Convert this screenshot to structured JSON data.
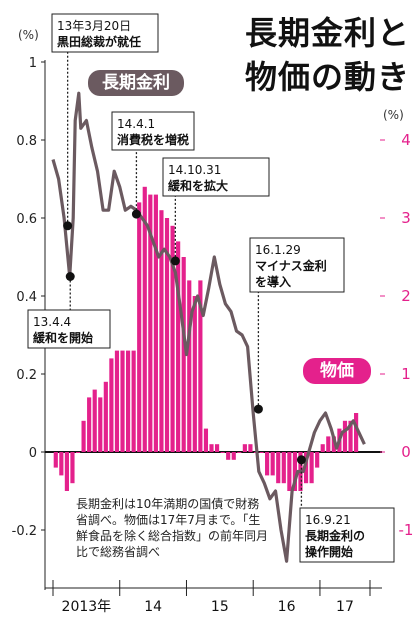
{
  "chart_data": {
    "type": "bar+line",
    "title": [
      "長期金利と",
      "物価の動き"
    ],
    "left_axis": {
      "unit": "(%)",
      "ticks": [
        1.0,
        0.8,
        0.6,
        0.4,
        0.2,
        0,
        -0.2
      ],
      "range": [
        -0.3,
        1.0
      ]
    },
    "right_axis": {
      "unit": "(%)",
      "ticks": [
        4,
        3,
        2,
        1,
        0,
        -1
      ],
      "range": [
        -1.5,
        5.0
      ],
      "color": "#e4218c"
    },
    "x_axis": {
      "labels": [
        "2013年",
        "14",
        "15",
        "16",
        "17"
      ],
      "start": "2013-01",
      "end": "2017-09"
    },
    "series": [
      {
        "name": "長期金利",
        "type": "line",
        "axis": "left",
        "color": "#6b5a60",
        "points": [
          [
            "2013-01",
            0.75
          ],
          [
            "2013-02",
            0.7
          ],
          [
            "2013-03",
            0.6
          ],
          [
            "2013-04",
            0.45
          ],
          [
            "2013-04-20",
            0.6
          ],
          [
            "2013-05",
            0.85
          ],
          [
            "2013-05-20",
            0.92
          ],
          [
            "2013-06",
            0.83
          ],
          [
            "2013-07",
            0.85
          ],
          [
            "2013-08",
            0.78
          ],
          [
            "2013-09",
            0.72
          ],
          [
            "2013-10",
            0.62
          ],
          [
            "2013-11",
            0.62
          ],
          [
            "2013-12",
            0.72
          ],
          [
            "2014-01",
            0.68
          ],
          [
            "2014-02",
            0.62
          ],
          [
            "2014-03",
            0.63
          ],
          [
            "2014-04",
            0.62
          ],
          [
            "2014-05",
            0.6
          ],
          [
            "2014-06",
            0.58
          ],
          [
            "2014-07",
            0.54
          ],
          [
            "2014-08",
            0.5
          ],
          [
            "2014-09",
            0.52
          ],
          [
            "2014-10",
            0.5
          ],
          [
            "2014-11",
            0.46
          ],
          [
            "2014-12",
            0.36
          ],
          [
            "2015-01",
            0.25
          ],
          [
            "2015-02",
            0.36
          ],
          [
            "2015-03",
            0.4
          ],
          [
            "2015-04",
            0.35
          ],
          [
            "2015-05",
            0.42
          ],
          [
            "2015-06",
            0.5
          ],
          [
            "2015-07",
            0.43
          ],
          [
            "2015-08",
            0.38
          ],
          [
            "2015-09",
            0.36
          ],
          [
            "2015-10",
            0.31
          ],
          [
            "2015-11",
            0.3
          ],
          [
            "2015-12",
            0.27
          ],
          [
            "2016-01",
            0.1
          ],
          [
            "2016-02",
            -0.05
          ],
          [
            "2016-03",
            -0.08
          ],
          [
            "2016-04",
            -0.12
          ],
          [
            "2016-05",
            -0.1
          ],
          [
            "2016-06",
            -0.2
          ],
          [
            "2016-07",
            -0.28
          ],
          [
            "2016-08",
            -0.1
          ],
          [
            "2016-09",
            -0.05
          ],
          [
            "2016-10",
            -0.05
          ],
          [
            "2016-11",
            0.0
          ],
          [
            "2016-12",
            0.05
          ],
          [
            "2017-01",
            0.08
          ],
          [
            "2017-02",
            0.1
          ],
          [
            "2017-03",
            0.06
          ],
          [
            "2017-04",
            0.01
          ],
          [
            "2017-05",
            0.05
          ],
          [
            "2017-06",
            0.06
          ],
          [
            "2017-07",
            0.08
          ],
          [
            "2017-08",
            0.05
          ],
          [
            "2017-09",
            0.02
          ]
        ]
      },
      {
        "name": "物価",
        "type": "bar",
        "axis": "right",
        "color": "#e4218c",
        "months": [
          "2013-01",
          "2013-02",
          "2013-03",
          "2013-04",
          "2013-05",
          "2013-06",
          "2013-07",
          "2013-08",
          "2013-09",
          "2013-10",
          "2013-11",
          "2013-12",
          "2014-01",
          "2014-02",
          "2014-03",
          "2014-04",
          "2014-05",
          "2014-06",
          "2014-07",
          "2014-08",
          "2014-09",
          "2014-10",
          "2014-11",
          "2014-12",
          "2015-01",
          "2015-02",
          "2015-03",
          "2015-04",
          "2015-05",
          "2015-06",
          "2015-07",
          "2015-08",
          "2015-09",
          "2015-10",
          "2015-11",
          "2015-12",
          "2016-01",
          "2016-02",
          "2016-03",
          "2016-04",
          "2016-05",
          "2016-06",
          "2016-07",
          "2016-08",
          "2016-09",
          "2016-10",
          "2016-11",
          "2016-12",
          "2017-01",
          "2017-02",
          "2017-03",
          "2017-04",
          "2017-05",
          "2017-06",
          "2017-07"
        ],
        "values": [
          -0.2,
          -0.3,
          -0.5,
          -0.4,
          0.0,
          0.4,
          0.7,
          0.8,
          0.7,
          0.9,
          1.2,
          1.3,
          1.3,
          1.3,
          1.3,
          3.2,
          3.4,
          3.3,
          3.3,
          3.1,
          3.0,
          2.9,
          2.7,
          2.5,
          2.2,
          2.0,
          2.2,
          0.3,
          0.1,
          0.1,
          0.0,
          -0.1,
          -0.1,
          -0.0,
          0.1,
          0.1,
          0.0,
          -0.0,
          -0.3,
          -0.3,
          -0.4,
          -0.4,
          -0.5,
          -0.5,
          -0.5,
          -0.4,
          -0.4,
          -0.2,
          0.1,
          0.2,
          0.2,
          0.3,
          0.4,
          0.4,
          0.5
        ]
      }
    ],
    "annotations": [
      {
        "date": "2013-03-20",
        "lines": [
          "13年3月20日",
          "黒田総裁が就任"
        ],
        "y": 0.58
      },
      {
        "date": "2013-04-04",
        "lines": [
          "13.4.4",
          "緩和を開始"
        ],
        "y": 0.45
      },
      {
        "date": "2014-04-01",
        "lines": [
          "14.4.1",
          "消費税を増税"
        ],
        "y": 0.61
      },
      {
        "date": "2014-10-31",
        "lines": [
          "14.10.31",
          "緩和を拡大"
        ],
        "y": 0.49
      },
      {
        "date": "2016-01-29",
        "lines": [
          "16.1.29",
          "マイナス金利",
          "を導入"
        ],
        "y": 0.11
      },
      {
        "date": "2016-09-21",
        "lines": [
          "16.9.21",
          "長期金利の",
          "操作開始"
        ],
        "y": -0.02
      }
    ],
    "note": "長期金利は10年満期の国債で財務省調べ。物価は17年7月まで。「生鮮食品を除く総合指数」の前年同月比で総務省調べ"
  }
}
